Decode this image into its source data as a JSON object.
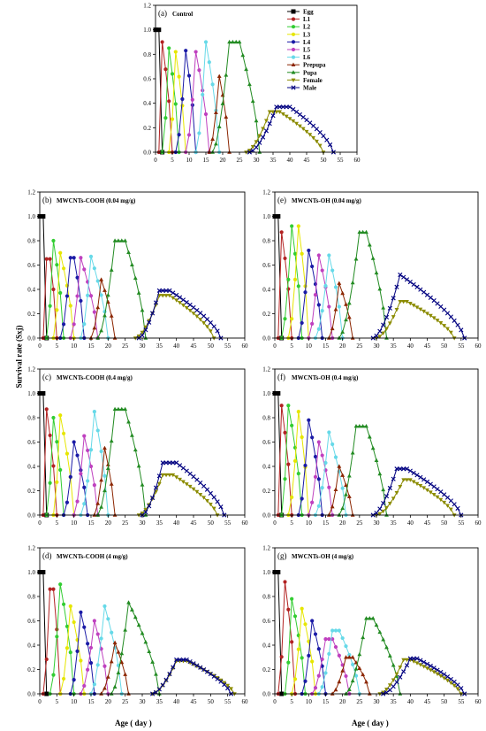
{
  "figure": {
    "ylabel": "Survival rate (Sxj)",
    "xlabel_left": "Age ( day )",
    "xlabel_right": "Age ( day )"
  },
  "series_styles": [
    {
      "name": "Egg",
      "color": "#000000",
      "marker": "square"
    },
    {
      "name": "L1",
      "color": "#b22222",
      "marker": "circle"
    },
    {
      "name": "L2",
      "color": "#32cd32",
      "marker": "circle"
    },
    {
      "name": "L3",
      "color": "#e6e600",
      "marker": "circle"
    },
    {
      "name": "L4",
      "color": "#1a1aa6",
      "marker": "circle"
    },
    {
      "name": "L5",
      "color": "#bf40bf",
      "marker": "circle"
    },
    {
      "name": "L6",
      "color": "#66d9e8",
      "marker": "circle"
    },
    {
      "name": "Prepupa",
      "color": "#8b2500",
      "marker": "triangle"
    },
    {
      "name": "Pupa",
      "color": "#228b22",
      "marker": "triangle"
    },
    {
      "name": "Female",
      "color": "#8b8b00",
      "marker": "triangle-down"
    },
    {
      "name": "Male",
      "color": "#000080",
      "marker": "cross"
    }
  ],
  "chart_data": [
    {
      "type": "line",
      "panel": "(a)",
      "title": "Control",
      "xlim": [
        0,
        60
      ],
      "ylim": [
        0,
        1.2
      ],
      "xticks": [
        "0",
        "5",
        "10",
        "15",
        "20",
        "25",
        "30",
        "35",
        "40",
        "45",
        "50",
        "55",
        "60"
      ],
      "yticks": [
        "0.0",
        "0.2",
        "0.4",
        "0.6",
        "0.8",
        "1.0",
        "1.2"
      ],
      "legend": "top-right",
      "series": [
        {
          "name": "Egg",
          "peak": [
            0,
            1.0
          ],
          "start": -1,
          "end": 2,
          "plateau": 1
        },
        {
          "name": "L1",
          "peak": [
            2,
            0.9
          ],
          "start": 1,
          "end": 5
        },
        {
          "name": "L2",
          "peak": [
            4,
            0.85
          ],
          "start": 2,
          "end": 7
        },
        {
          "name": "L3",
          "peak": [
            6,
            0.82
          ],
          "start": 4,
          "end": 9
        },
        {
          "name": "L4",
          "peak": [
            9,
            0.83
          ],
          "start": 6,
          "end": 12
        },
        {
          "name": "L5",
          "peak": [
            12,
            0.82
          ],
          "start": 9,
          "end": 16
        },
        {
          "name": "L6",
          "peak": [
            15,
            0.9
          ],
          "start": 12,
          "end": 19
        },
        {
          "name": "Prepupa",
          "peak": [
            19,
            0.62
          ],
          "start": 16,
          "end": 22
        },
        {
          "name": "Pupa",
          "peak": [
            22,
            0.9
          ],
          "start": 17,
          "end": 31,
          "plateau": 3
        },
        {
          "name": "Female",
          "peak": [
            34,
            0.33
          ],
          "start": 27,
          "end": 50,
          "plateau": 3
        },
        {
          "name": "Male",
          "peak": [
            36,
            0.37
          ],
          "start": 28,
          "end": 53,
          "plateau": 4
        }
      ]
    },
    {
      "type": "line",
      "panel": "(b)",
      "title": "MWCNTs-COOH (0.04 mg/g)",
      "xlim": [
        0,
        60
      ],
      "ylim": [
        0,
        1.2
      ],
      "xticks": [
        "0",
        "5",
        "10",
        "15",
        "20",
        "25",
        "30",
        "35",
        "40",
        "45",
        "50",
        "55",
        "60"
      ],
      "yticks": [
        "0.0",
        "0.2",
        "0.4",
        "0.6",
        "0.8",
        "1.0",
        "1.2"
      ],
      "series": [
        {
          "name": "Egg",
          "peak": [
            0,
            1.0
          ],
          "start": -1,
          "end": 2,
          "plateau": 1
        },
        {
          "name": "L1",
          "peak": [
            2,
            0.65
          ],
          "start": 1,
          "end": 5,
          "plateau": 1
        },
        {
          "name": "L2",
          "peak": [
            4,
            0.8
          ],
          "start": 2,
          "end": 7
        },
        {
          "name": "L3",
          "peak": [
            6,
            0.7
          ],
          "start": 4,
          "end": 10
        },
        {
          "name": "L4",
          "peak": [
            9,
            0.66
          ],
          "start": 6,
          "end": 13,
          "plateau": 1
        },
        {
          "name": "L5",
          "peak": [
            12,
            0.66
          ],
          "start": 9,
          "end": 17
        },
        {
          "name": "L6",
          "peak": [
            15,
            0.67
          ],
          "start": 12,
          "end": 20
        },
        {
          "name": "Prepupa",
          "peak": [
            18,
            0.48
          ],
          "start": 15,
          "end": 22
        },
        {
          "name": "Pupa",
          "peak": [
            22,
            0.8
          ],
          "start": 17,
          "end": 31,
          "plateau": 3
        },
        {
          "name": "Female",
          "peak": [
            35,
            0.35
          ],
          "start": 28,
          "end": 51,
          "plateau": 3
        },
        {
          "name": "Male",
          "peak": [
            35,
            0.39
          ],
          "start": 29,
          "end": 53,
          "plateau": 3
        }
      ]
    },
    {
      "type": "line",
      "panel": "(c)",
      "title": "MWCNTs-COOH (0.4 mg/g)",
      "xlim": [
        0,
        60
      ],
      "ylim": [
        0,
        1.2
      ],
      "xticks": [
        "0",
        "5",
        "10",
        "15",
        "20",
        "25",
        "30",
        "35",
        "40",
        "45",
        "50",
        "55",
        "60"
      ],
      "yticks": [
        "0.0",
        "0.2",
        "0.4",
        "0.6",
        "0.8",
        "1.0",
        "1.2"
      ],
      "series": [
        {
          "name": "Egg",
          "peak": [
            0,
            1.0
          ],
          "start": -1,
          "end": 2,
          "plateau": 1
        },
        {
          "name": "L1",
          "peak": [
            2,
            0.87
          ],
          "start": 1,
          "end": 5
        },
        {
          "name": "L2",
          "peak": [
            4,
            0.8
          ],
          "start": 2,
          "end": 7
        },
        {
          "name": "L3",
          "peak": [
            6,
            0.82
          ],
          "start": 4,
          "end": 10
        },
        {
          "name": "L4",
          "peak": [
            10,
            0.6
          ],
          "start": 7,
          "end": 14
        },
        {
          "name": "L5",
          "peak": [
            13,
            0.65
          ],
          "start": 10,
          "end": 17
        },
        {
          "name": "L6",
          "peak": [
            16,
            0.85
          ],
          "start": 12,
          "end": 20
        },
        {
          "name": "Prepupa",
          "peak": [
            19,
            0.55
          ],
          "start": 16,
          "end": 22
        },
        {
          "name": "Pupa",
          "peak": [
            22,
            0.87
          ],
          "start": 17,
          "end": 31,
          "plateau": 3
        },
        {
          "name": "Female",
          "peak": [
            36,
            0.33
          ],
          "start": 29,
          "end": 52,
          "plateau": 3
        },
        {
          "name": "Male",
          "peak": [
            36,
            0.43
          ],
          "start": 30,
          "end": 54,
          "plateau": 4
        }
      ]
    },
    {
      "type": "line",
      "panel": "(d)",
      "title": "MWCNTs-COOH (4 mg/g)",
      "xlim": [
        0,
        60
      ],
      "ylim": [
        0,
        1.2
      ],
      "xticks": [
        "0",
        "5",
        "10",
        "15",
        "20",
        "25",
        "30",
        "35",
        "40",
        "45",
        "50",
        "55",
        "60"
      ],
      "yticks": [
        "0.0",
        "0.2",
        "0.4",
        "0.6",
        "0.8",
        "1.0",
        "1.2"
      ],
      "series": [
        {
          "name": "Egg",
          "peak": [
            0,
            1.0
          ],
          "start": -1,
          "end": 2,
          "plateau": 1
        },
        {
          "name": "L1",
          "peak": [
            3,
            0.86
          ],
          "start": 1,
          "end": 6,
          "plateau": 1
        },
        {
          "name": "L2",
          "peak": [
            6,
            0.9
          ],
          "start": 3,
          "end": 10
        },
        {
          "name": "L3",
          "peak": [
            9,
            0.72
          ],
          "start": 6,
          "end": 13
        },
        {
          "name": "L4",
          "peak": [
            12,
            0.67
          ],
          "start": 9,
          "end": 16
        },
        {
          "name": "L5",
          "peak": [
            16,
            0.6
          ],
          "start": 12,
          "end": 20
        },
        {
          "name": "L6",
          "peak": [
            19,
            0.72
          ],
          "start": 15,
          "end": 24
        },
        {
          "name": "Prepupa",
          "peak": [
            22,
            0.42
          ],
          "start": 18,
          "end": 26
        },
        {
          "name": "Pupa",
          "peak": [
            26,
            0.75
          ],
          "start": 21,
          "end": 35
        },
        {
          "name": "Female",
          "peak": [
            40,
            0.27
          ],
          "start": 33,
          "end": 57,
          "plateau": 3
        },
        {
          "name": "Male",
          "peak": [
            40,
            0.28
          ],
          "start": 33,
          "end": 56,
          "plateau": 3
        }
      ]
    },
    {
      "type": "line",
      "panel": "(e)",
      "title": "MWCNTs-OH (0.04 mg/g)",
      "xlim": [
        0,
        60
      ],
      "ylim": [
        0,
        1.2
      ],
      "xticks": [
        "0",
        "5",
        "10",
        "15",
        "20",
        "25",
        "30",
        "35",
        "40",
        "45",
        "50",
        "55",
        "60"
      ],
      "yticks": [
        "0.0",
        "0.2",
        "0.4",
        "0.6",
        "0.8",
        "1.0",
        "1.2"
      ],
      "series": [
        {
          "name": "Egg",
          "peak": [
            0,
            1.0
          ],
          "start": -1,
          "end": 2,
          "plateau": 1
        },
        {
          "name": "L1",
          "peak": [
            2,
            0.87
          ],
          "start": 1,
          "end": 5
        },
        {
          "name": "L2",
          "peak": [
            5,
            0.92
          ],
          "start": 2,
          "end": 8
        },
        {
          "name": "L3",
          "peak": [
            7,
            0.92
          ],
          "start": 4,
          "end": 10
        },
        {
          "name": "L4",
          "peak": [
            10,
            0.72
          ],
          "start": 7,
          "end": 14
        },
        {
          "name": "L5",
          "peak": [
            13,
            0.68
          ],
          "start": 10,
          "end": 17
        },
        {
          "name": "L6",
          "peak": [
            16,
            0.68
          ],
          "start": 12,
          "end": 20
        },
        {
          "name": "Prepupa",
          "peak": [
            19,
            0.45
          ],
          "start": 16,
          "end": 23
        },
        {
          "name": "Pupa",
          "peak": [
            25,
            0.87
          ],
          "start": 19,
          "end": 33,
          "plateau": 2
        },
        {
          "name": "Female",
          "peak": [
            37,
            0.3
          ],
          "start": 30,
          "end": 53,
          "plateau": 2
        },
        {
          "name": "Male",
          "peak": [
            37,
            0.52
          ],
          "start": 29,
          "end": 56
        }
      ]
    },
    {
      "type": "line",
      "panel": "(f)",
      "title": "MWCNTs-OH (0.4 mg/g)",
      "xlim": [
        0,
        60
      ],
      "ylim": [
        0,
        1.2
      ],
      "xticks": [
        "0",
        "5",
        "10",
        "15",
        "20",
        "25",
        "30",
        "35",
        "40",
        "45",
        "50",
        "55",
        "60"
      ],
      "yticks": [
        "0.0",
        "0.2",
        "0.4",
        "0.6",
        "0.8",
        "1.0",
        "1.2"
      ],
      "series": [
        {
          "name": "Egg",
          "peak": [
            0,
            1.0
          ],
          "start": -1,
          "end": 2,
          "plateau": 1
        },
        {
          "name": "L1",
          "peak": [
            2,
            0.9
          ],
          "start": 1,
          "end": 5
        },
        {
          "name": "L2",
          "peak": [
            4,
            0.9
          ],
          "start": 2,
          "end": 8
        },
        {
          "name": "L3",
          "peak": [
            7,
            0.85
          ],
          "start": 4,
          "end": 10
        },
        {
          "name": "L4",
          "peak": [
            10,
            0.78
          ],
          "start": 7,
          "end": 14
        },
        {
          "name": "L5",
          "peak": [
            13,
            0.6
          ],
          "start": 10,
          "end": 17
        },
        {
          "name": "L6",
          "peak": [
            16,
            0.68
          ],
          "start": 12,
          "end": 21
        },
        {
          "name": "Prepupa",
          "peak": [
            19,
            0.4
          ],
          "start": 16,
          "end": 23
        },
        {
          "name": "Pupa",
          "peak": [
            24,
            0.73
          ],
          "start": 19,
          "end": 33,
          "plateau": 3
        },
        {
          "name": "Female",
          "peak": [
            38,
            0.29
          ],
          "start": 30,
          "end": 53,
          "plateau": 2
        },
        {
          "name": "Male",
          "peak": [
            36,
            0.38
          ],
          "start": 29,
          "end": 55,
          "plateau": 3
        }
      ]
    },
    {
      "type": "line",
      "panel": "(g)",
      "title": "MWCNTs-OH (4 mg/g)",
      "xlim": [
        0,
        60
      ],
      "ylim": [
        0,
        1.2
      ],
      "xticks": [
        "0",
        "5",
        "10",
        "15",
        "20",
        "25",
        "30",
        "35",
        "40",
        "45",
        "50",
        "55",
        "60"
      ],
      "yticks": [
        "0.0",
        "0.2",
        "0.4",
        "0.6",
        "0.8",
        "1.0",
        "1.2"
      ],
      "series": [
        {
          "name": "Egg",
          "peak": [
            0,
            1.0
          ],
          "start": -1,
          "end": 2,
          "plateau": 1
        },
        {
          "name": "L1",
          "peak": [
            3,
            0.92
          ],
          "start": 1,
          "end": 6
        },
        {
          "name": "L2",
          "peak": [
            5,
            0.78
          ],
          "start": 3,
          "end": 9
        },
        {
          "name": "L3",
          "peak": [
            8,
            0.7
          ],
          "start": 5,
          "end": 12
        },
        {
          "name": "L4",
          "peak": [
            11,
            0.6
          ],
          "start": 8,
          "end": 15
        },
        {
          "name": "L5",
          "peak": [
            15,
            0.45
          ],
          "start": 11,
          "end": 22,
          "plateau": 2
        },
        {
          "name": "L6",
          "peak": [
            17,
            0.52
          ],
          "start": 13,
          "end": 25,
          "plateau": 2
        },
        {
          "name": "Prepupa",
          "peak": [
            21,
            0.3
          ],
          "start": 17,
          "end": 28,
          "plateau": 2
        },
        {
          "name": "Pupa",
          "peak": [
            27,
            0.62
          ],
          "start": 21,
          "end": 37,
          "plateau": 2
        },
        {
          "name": "Female",
          "peak": [
            38,
            0.28
          ],
          "start": 31,
          "end": 55,
          "plateau": 2
        },
        {
          "name": "Male",
          "peak": [
            40,
            0.29
          ],
          "start": 32,
          "end": 56,
          "plateau": 2
        }
      ]
    }
  ]
}
